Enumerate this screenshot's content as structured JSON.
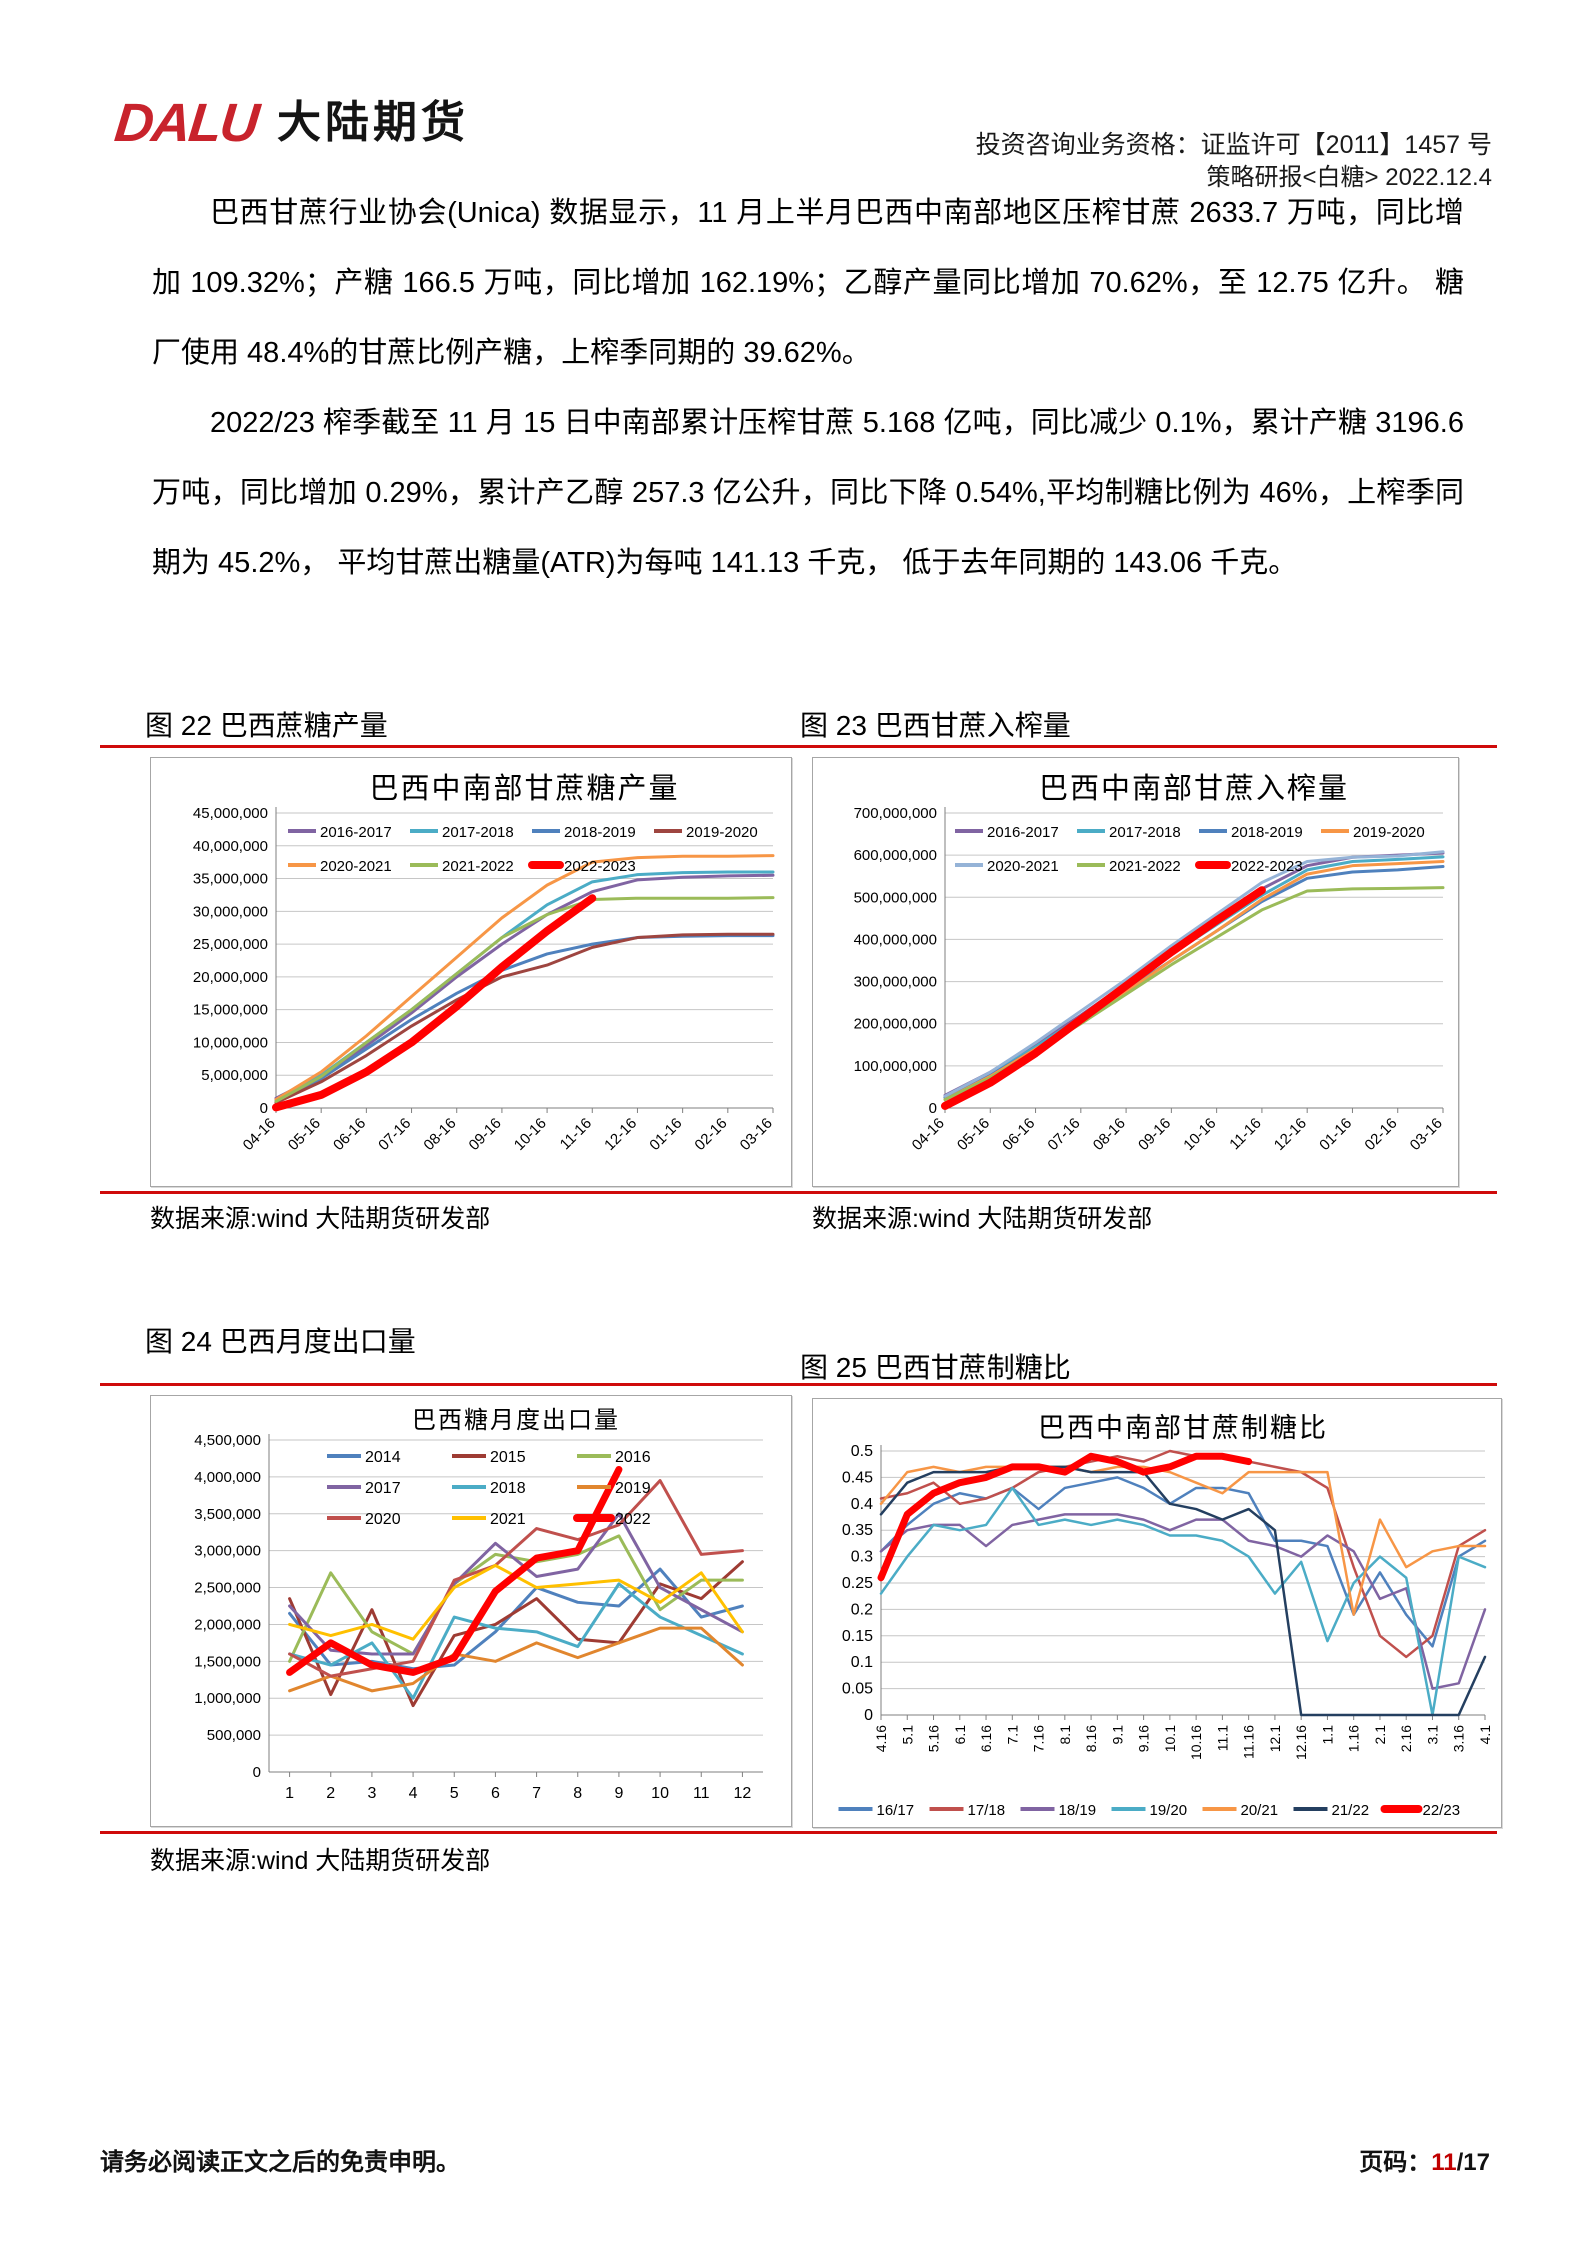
{
  "header": {
    "logo_text": "DALU",
    "logo_cn": "大陆期货",
    "qualification": "投资咨询业务资格：证监许可【2011】1457 号",
    "report_line": "策略研报<白糖> 2022.12.4"
  },
  "paragraphs": {
    "p1": "巴西甘蔗行业协会(Unica) 数据显示，11 月上半月巴西中南部地区压榨甘蔗 2633.7 万吨，同比增加 109.32%；产糖 166.5 万吨，同比增加 162.19%；乙醇产量同比增加 70.62%，至 12.75 亿升。 糖厂使用 48.4%的甘蔗比例产糖，上榨季同期的 39.62%。",
    "p2": "2022/23 榨季截至 11 月 15 日中南部累计压榨甘蔗 5.168 亿吨，同比减少 0.1%，累计产糖 3196.6 万吨，同比增加 0.29%，累计产乙醇 257.3 亿公升，同比下降 0.54%,平均制糖比例为 46%，上榨季同期为 45.2%， 平均甘蔗出糖量(ATR)为每吨 141.13 千克， 低于去年同期的 143.06 千克。"
  },
  "figures": {
    "f22": "图 22  巴西蔗糖产量",
    "f23": "图 23  巴西甘蔗入榨量",
    "f24": "图 24  巴西月度出口量",
    "f25": "图 25  巴西甘蔗制糖比"
  },
  "source_note": "数据来源:wind 大陆期货研发部",
  "footer": {
    "disclaimer": "请务必阅读正文之后的免责申明。",
    "page_label": "页码：",
    "page_current": "11",
    "page_total": "/17"
  },
  "chart_data": [
    {
      "type": "line",
      "title": "巴西中南部甘蔗糖产量",
      "x_labels": [
        "04-16",
        "05-16",
        "06-16",
        "07-16",
        "08-16",
        "09-16",
        "10-16",
        "11-16",
        "12-16",
        "01-16",
        "02-16",
        "03-16"
      ],
      "ylim": [
        0,
        45000000
      ],
      "ystep": 5000000,
      "y_decimals": 0,
      "grid": true,
      "legend_position": "top-inside",
      "series": [
        {
          "name": "2016-2017",
          "color": "#8064A2",
          "values": [
            1500000,
            5000000,
            9500000,
            14500000,
            20000000,
            25000000,
            29500000,
            33000000,
            34800000,
            35200000,
            35400000,
            35500000
          ]
        },
        {
          "name": "2017-2018",
          "color": "#4BACC6",
          "values": [
            1200000,
            5000000,
            10000000,
            15000000,
            20500000,
            26000000,
            31000000,
            34500000,
            35600000,
            35900000,
            36000000,
            36000000
          ]
        },
        {
          "name": "2018-2019",
          "color": "#4F81BD",
          "values": [
            1000000,
            4500000,
            9000000,
            13500000,
            17500000,
            21000000,
            23500000,
            25000000,
            26000000,
            26200000,
            26300000,
            26300000
          ]
        },
        {
          "name": "2019-2020",
          "color": "#9E4540",
          "values": [
            800000,
            4000000,
            8000000,
            12500000,
            16500000,
            20000000,
            21800000,
            24500000,
            26000000,
            26400000,
            26500000,
            26500000
          ]
        },
        {
          "name": "2020-2021",
          "color": "#F79646",
          "values": [
            1300000,
            5500000,
            11000000,
            17000000,
            23000000,
            29000000,
            34000000,
            37500000,
            38200000,
            38400000,
            38400000,
            38500000
          ]
        },
        {
          "name": "2021-2022",
          "color": "#9BBB59",
          "values": [
            1000000,
            4800000,
            10000000,
            15000000,
            20500000,
            26000000,
            29500000,
            31800000,
            32000000,
            32000000,
            32000000,
            32100000
          ]
        },
        {
          "name": "2022-2023",
          "color": "#FF0000",
          "thick": true,
          "values": [
            100000,
            2000000,
            5500000,
            10000000,
            15500000,
            21500000,
            27000000,
            32000000
          ]
        }
      ]
    },
    {
      "type": "line",
      "title": "巴西中南部甘蔗入榨量",
      "x_labels": [
        "04-16",
        "05-16",
        "06-16",
        "07-16",
        "08-16",
        "09-16",
        "10-16",
        "11-16",
        "12-16",
        "01-16",
        "02-16",
        "03-16"
      ],
      "ylim": [
        0,
        700000000
      ],
      "ystep": 100000000,
      "y_decimals": 0,
      "grid": true,
      "legend_position": "top-inside",
      "series": [
        {
          "name": "2016-2017",
          "color": "#8064A2",
          "values": [
            30000000,
            85000000,
            150000000,
            220000000,
            295000000,
            370000000,
            440000000,
            520000000,
            575000000,
            595000000,
            600000000,
            605000000
          ]
        },
        {
          "name": "2017-2018",
          "color": "#4BACC6",
          "values": [
            25000000,
            80000000,
            145000000,
            215000000,
            290000000,
            365000000,
            435000000,
            505000000,
            565000000,
            585000000,
            590000000,
            596000000
          ]
        },
        {
          "name": "2018-2019",
          "color": "#4F81BD",
          "values": [
            25000000,
            78000000,
            140000000,
            210000000,
            280000000,
            350000000,
            420000000,
            490000000,
            545000000,
            560000000,
            565000000,
            573000000
          ]
        },
        {
          "name": "2019-2020",
          "color": "#F79646",
          "values": [
            20000000,
            75000000,
            140000000,
            205000000,
            275000000,
            350000000,
            420000000,
            495000000,
            555000000,
            575000000,
            580000000,
            585000000
          ]
        },
        {
          "name": "2020-2021",
          "color": "#95B3D7",
          "values": [
            28000000,
            85000000,
            155000000,
            230000000,
            305000000,
            385000000,
            460000000,
            535000000,
            585000000,
            595000000,
            598000000,
            608000000
          ]
        },
        {
          "name": "2021-2022",
          "color": "#9BBB59",
          "values": [
            20000000,
            72000000,
            135000000,
            200000000,
            270000000,
            340000000,
            405000000,
            470000000,
            515000000,
            520000000,
            521000000,
            523000000
          ]
        },
        {
          "name": "2022-2023",
          "color": "#FF0000",
          "thick": true,
          "values": [
            5000000,
            60000000,
            130000000,
            210000000,
            290000000,
            370000000,
            445000000,
            516800000
          ]
        }
      ]
    },
    {
      "type": "line",
      "title": "巴西糖月度出口量",
      "x_labels": [
        "1",
        "2",
        "3",
        "4",
        "5",
        "6",
        "7",
        "8",
        "9",
        "10",
        "11",
        "12"
      ],
      "ylim": [
        0,
        4500000
      ],
      "ystep": 500000,
      "y_decimals": 0,
      "grid": true,
      "legend_position": "top-inside",
      "series": [
        {
          "name": "2014",
          "color": "#4F81BD",
          "values": [
            2150000,
            1450000,
            1500000,
            1400000,
            1450000,
            1900000,
            2500000,
            2300000,
            2250000,
            2750000,
            2100000,
            2250000
          ]
        },
        {
          "name": "2015",
          "color": "#9E3B33",
          "values": [
            2350000,
            1050000,
            2200000,
            900000,
            1850000,
            2000000,
            2350000,
            1800000,
            1750000,
            2550000,
            2350000,
            2850000
          ]
        },
        {
          "name": "2016",
          "color": "#9BBB59",
          "values": [
            1500000,
            2700000,
            1900000,
            1600000,
            2550000,
            2950000,
            2850000,
            2950000,
            3200000,
            2200000,
            2600000,
            2600000
          ]
        },
        {
          "name": "2017",
          "color": "#8064A2",
          "values": [
            2250000,
            1650000,
            1600000,
            1600000,
            2550000,
            3100000,
            2650000,
            2750000,
            3500000,
            2500000,
            2200000,
            1900000
          ]
        },
        {
          "name": "2018",
          "color": "#4BACC6",
          "values": [
            1600000,
            1450000,
            1750000,
            1000000,
            2100000,
            1950000,
            1900000,
            1700000,
            2550000,
            2100000,
            1850000,
            1600000
          ]
        },
        {
          "name": "2019",
          "color": "#E1862E",
          "values": [
            1100000,
            1300000,
            1100000,
            1200000,
            1600000,
            1500000,
            1750000,
            1550000,
            1750000,
            1950000,
            1950000,
            1450000
          ]
        },
        {
          "name": "2020",
          "color": "#C0504D",
          "values": [
            1600000,
            1300000,
            1400000,
            1500000,
            2600000,
            2800000,
            3300000,
            3150000,
            3350000,
            3950000,
            2950000,
            3000000
          ]
        },
        {
          "name": "2021",
          "color": "#FFC000",
          "values": [
            2000000,
            1850000,
            2000000,
            1800000,
            2500000,
            2800000,
            2500000,
            2550000,
            2600000,
            2300000,
            2700000,
            1900000
          ]
        },
        {
          "name": "2022",
          "color": "#FF0000",
          "thick": true,
          "values": [
            1350000,
            1750000,
            1450000,
            1350000,
            1550000,
            2450000,
            2900000,
            3000000,
            4100000
          ]
        }
      ]
    },
    {
      "type": "line",
      "title": "巴西中南部甘蔗制糖比",
      "x_labels": [
        "4.16",
        "5.1",
        "5.16",
        "6.1",
        "6.16",
        "7.1",
        "7.16",
        "8.1",
        "8.16",
        "9.1",
        "9.16",
        "10.1",
        "10.16",
        "11.1",
        "11.16",
        "12.1",
        "12.16",
        "1.1",
        "1.16",
        "2.1",
        "2.16",
        "3.1",
        "3.16",
        "4.1"
      ],
      "ylim": [
        0,
        0.5
      ],
      "ystep": 0.05,
      "y_decimals": 2,
      "grid": true,
      "legend_position": "bottom",
      "series": [
        {
          "name": "16/17",
          "color": "#4F81BD",
          "values": [
            0.31,
            0.36,
            0.4,
            0.42,
            0.41,
            0.43,
            0.39,
            0.43,
            0.44,
            0.45,
            0.43,
            0.4,
            0.43,
            0.43,
            0.42,
            0.33,
            0.33,
            0.32,
            0.19,
            0.27,
            0.19,
            0.13,
            0.3,
            0.33
          ]
        },
        {
          "name": "17/18",
          "color": "#C0504D",
          "values": [
            0.41,
            0.42,
            0.44,
            0.4,
            0.41,
            0.43,
            0.46,
            0.47,
            0.48,
            0.49,
            0.48,
            0.5,
            0.49,
            0.49,
            0.48,
            0.47,
            0.46,
            0.43,
            0.28,
            0.15,
            0.11,
            0.15,
            0.32,
            0.35
          ]
        },
        {
          "name": "18/19",
          "color": "#8064A2",
          "values": [
            0.31,
            0.35,
            0.36,
            0.36,
            0.32,
            0.36,
            0.37,
            0.38,
            0.38,
            0.38,
            0.37,
            0.35,
            0.37,
            0.37,
            0.33,
            0.32,
            0.3,
            0.34,
            0.31,
            0.22,
            0.24,
            0.05,
            0.06,
            0.2
          ]
        },
        {
          "name": "19/20",
          "color": "#4BACC6",
          "values": [
            0.23,
            0.3,
            0.36,
            0.35,
            0.36,
            0.43,
            0.36,
            0.37,
            0.36,
            0.37,
            0.36,
            0.34,
            0.34,
            0.33,
            0.3,
            0.23,
            0.29,
            0.14,
            0.25,
            0.3,
            0.26,
            0.0,
            0.3,
            0.28
          ]
        },
        {
          "name": "20/21",
          "color": "#F79646",
          "values": [
            0.4,
            0.46,
            0.47,
            0.46,
            0.47,
            0.47,
            0.47,
            0.47,
            0.46,
            0.47,
            0.47,
            0.46,
            0.44,
            0.42,
            0.46,
            0.46,
            0.46,
            0.46,
            0.19,
            0.37,
            0.28,
            0.31,
            0.32,
            0.32
          ]
        },
        {
          "name": "21/22",
          "color": "#243F60",
          "values": [
            0.38,
            0.44,
            0.46,
            0.46,
            0.46,
            0.47,
            0.47,
            0.47,
            0.46,
            0.46,
            0.46,
            0.4,
            0.39,
            0.37,
            0.39,
            0.35,
            0.0,
            0.0,
            0.0,
            0.0,
            0.0,
            0.0,
            0.0,
            0.11
          ]
        },
        {
          "name": "22/23",
          "color": "#FF0000",
          "thick": true,
          "values": [
            0.26,
            0.38,
            0.42,
            0.44,
            0.45,
            0.47,
            0.47,
            0.46,
            0.49,
            0.48,
            0.46,
            0.47,
            0.49,
            0.49,
            0.48
          ]
        }
      ]
    }
  ]
}
